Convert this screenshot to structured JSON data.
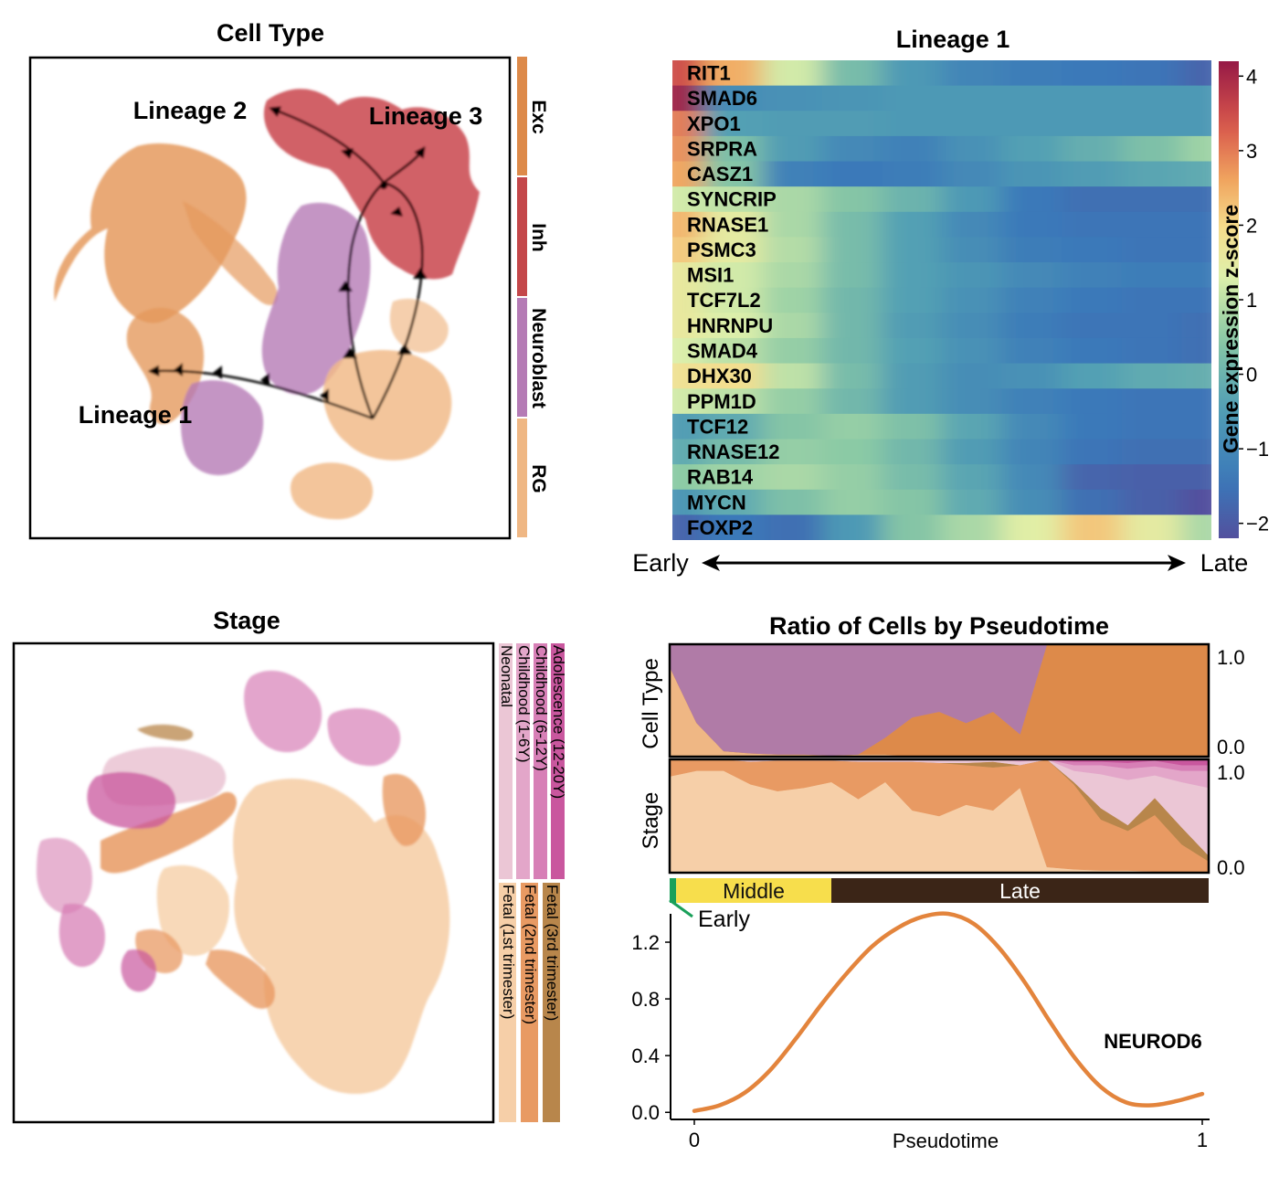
{
  "chart_data": [
    {
      "type": "scatter",
      "title": "Cell Type",
      "legend": {
        "placement": "right",
        "entries": [
          {
            "label": "Exc",
            "color": "#dd8a4a"
          },
          {
            "label": "Inh",
            "color": "#c4474a"
          },
          {
            "label": "Neuroblast",
            "color": "#b57bb5"
          },
          {
            "label": "RG",
            "color": "#efb784"
          }
        ]
      },
      "annotations": [
        "Lineage 1",
        "Lineage 2",
        "Lineage 3"
      ]
    },
    {
      "type": "heatmap",
      "title": "Lineage 1",
      "genes": [
        "RIT1",
        "SMAD6",
        "XPO1",
        "SRPRA",
        "CASZ1",
        "SYNCRIP",
        "RNASE1",
        "PSMC3",
        "MSI1",
        "TCF7L2",
        "HNRNPU",
        "SMAD4",
        "DHX30",
        "PPM1D",
        "TCF12",
        "RNASE12",
        "RAB14",
        "MYCN",
        "FOXP2"
      ],
      "x_axis": {
        "start_label": "Early",
        "end_label": "Late"
      },
      "colorbar": {
        "label": "Gene expression z-score",
        "ticks": [
          4,
          3,
          2,
          1,
          0,
          -1,
          -2
        ],
        "range": [
          -2.2,
          4.2
        ]
      },
      "rows": [
        [
          3.5,
          2.5,
          1.2,
          0.2,
          -0.6,
          -1.1,
          -1.3,
          -1.4,
          -1.5,
          -1.8
        ],
        [
          4.1,
          -0.9,
          -0.8,
          -0.7,
          -0.6,
          -0.6,
          -0.6,
          -0.6,
          -0.6,
          -0.6
        ],
        [
          3.0,
          -0.4,
          -0.5,
          -0.5,
          -0.6,
          -0.6,
          -0.6,
          -0.6,
          -0.6,
          -0.6
        ],
        [
          2.8,
          0.3,
          -0.5,
          -1.0,
          -1.2,
          -0.8,
          -0.4,
          -0.1,
          0.3,
          0.7
        ],
        [
          2.6,
          0.4,
          -1.2,
          -1.4,
          -1.3,
          -1.0,
          -0.7,
          -0.5,
          -0.3,
          -0.2
        ],
        [
          1.2,
          1.0,
          0.8,
          0.4,
          0.0,
          -0.6,
          -1.4,
          -1.6,
          -1.6,
          -1.6
        ],
        [
          2.4,
          1.5,
          0.8,
          0.2,
          -0.4,
          -1.0,
          -1.4,
          -1.5,
          -1.5,
          -1.5
        ],
        [
          2.2,
          1.5,
          0.9,
          0.2,
          -0.4,
          -0.9,
          -1.3,
          -1.4,
          -1.5,
          -1.5
        ],
        [
          1.6,
          1.2,
          0.8,
          0.2,
          -0.4,
          -0.7,
          -1.0,
          -1.2,
          -1.3,
          -1.3
        ],
        [
          1.6,
          1.2,
          0.7,
          0.1,
          -0.4,
          -0.8,
          -1.2,
          -1.4,
          -1.5,
          -1.5
        ],
        [
          1.6,
          1.3,
          0.8,
          0.1,
          -0.5,
          -0.9,
          -1.3,
          -1.5,
          -1.5,
          -1.6
        ],
        [
          1.3,
          1.0,
          0.6,
          0.1,
          -0.4,
          -0.8,
          -1.2,
          -1.4,
          -1.5,
          -1.6
        ],
        [
          1.8,
          1.9,
          1.0,
          0.2,
          -0.5,
          -0.9,
          -0.8,
          -0.4,
          -0.2,
          -0.1
        ],
        [
          1.2,
          1.0,
          0.6,
          0.1,
          -0.5,
          -0.9,
          -1.2,
          -1.4,
          -1.5,
          -1.5
        ],
        [
          -0.5,
          -0.2,
          0.4,
          0.6,
          0.3,
          -0.3,
          -1.0,
          -1.4,
          -1.5,
          -1.5
        ],
        [
          -0.2,
          0.2,
          0.6,
          0.5,
          0.1,
          -0.5,
          -1.1,
          -1.5,
          -1.6,
          -1.6
        ],
        [
          0.5,
          0.7,
          0.8,
          0.6,
          0.2,
          -0.3,
          -1.0,
          -1.8,
          -1.9,
          -1.9
        ],
        [
          -0.7,
          -0.2,
          0.3,
          0.6,
          0.4,
          -0.2,
          -0.9,
          -1.6,
          -1.9,
          -2.2
        ],
        [
          -1.8,
          -1.4,
          -1.6,
          -0.6,
          0.4,
          0.8,
          1.4,
          2.2,
          1.5,
          0.8
        ]
      ]
    },
    {
      "type": "scatter",
      "title": "Stage",
      "legend": {
        "placement": "right",
        "entries": [
          {
            "label": "Neonatal",
            "color": "#ebc6d5"
          },
          {
            "label": "Childhood (1-6Y)",
            "color": "#e3a6c9"
          },
          {
            "label": "Childhood (6-12Y)",
            "color": "#d77fb6"
          },
          {
            "label": "Adolescence (12-20Y)",
            "color": "#c9579e"
          },
          {
            "label": "Fetal (1st trimester)",
            "color": "#f6cfa8"
          },
          {
            "label": "Fetal (2nd trimester)",
            "color": "#e89a63"
          },
          {
            "label": "Fetal (3rd trimester)",
            "color": "#b8864b"
          }
        ]
      }
    },
    {
      "type": "area",
      "title": "Ratio of Cells by Pseudotime",
      "x": [
        0,
        0.05,
        0.1,
        0.15,
        0.2,
        0.25,
        0.3,
        0.35,
        0.4,
        0.45,
        0.5,
        0.55,
        0.6,
        0.65,
        0.7,
        0.75,
        0.8,
        0.85,
        0.9,
        0.95,
        1.0
      ],
      "panels": [
        {
          "ylabel": "Cell Type",
          "ylim": [
            0,
            1
          ],
          "yticks": [
            "1.0",
            "0.0"
          ],
          "series": [
            {
              "name": "RG",
              "color": "#efb784",
              "values": [
                0.8,
                0.3,
                0.05,
                0.03,
                0.02,
                0.02,
                0.01,
                0.02,
                0.02,
                0,
                0,
                0,
                0,
                0,
                0,
                0,
                0,
                0,
                0,
                0,
                0
              ]
            },
            {
              "name": "Exc",
              "color": "#dd8a4a",
              "values": [
                0,
                0,
                0,
                0,
                0,
                0,
                0,
                0,
                0.15,
                0.35,
                0.4,
                0.3,
                0.4,
                0.2,
                1.0,
                1.0,
                1.0,
                1.0,
                1.0,
                1.0,
                1.0
              ]
            },
            {
              "name": "Neuroblast",
              "color": "#b07ba7",
              "values": [
                0.2,
                0.7,
                0.95,
                0.97,
                0.98,
                0.98,
                0.99,
                0.98,
                0.83,
                0.65,
                0.6,
                0.7,
                0.6,
                0.8,
                0,
                0,
                0,
                0,
                0,
                0,
                0
              ]
            }
          ]
        },
        {
          "ylabel": "Stage",
          "ylim": [
            0,
            1
          ],
          "yticks": [
            "1.0",
            "0.0"
          ],
          "series": [
            {
              "name": "Fetal (1st trimester)",
              "color": "#f6cfa8",
              "values": [
                0.85,
                0.9,
                0.9,
                0.78,
                0.72,
                0.75,
                0.8,
                0.65,
                0.8,
                0.55,
                0.5,
                0.6,
                0.55,
                0.75,
                0.05,
                0.03,
                0.02,
                0.02,
                0.01,
                0,
                0
              ]
            },
            {
              "name": "Fetal (2nd trimester)",
              "color": "#e89a63",
              "values": [
                0.15,
                0.1,
                0.1,
                0.2,
                0.27,
                0.24,
                0.19,
                0.33,
                0.18,
                0.43,
                0.47,
                0.35,
                0.38,
                0.2,
                0.95,
                0.75,
                0.45,
                0.35,
                0.5,
                0.25,
                0.1
              ]
            },
            {
              "name": "Fetal (3rd trimester)",
              "color": "#b8864b",
              "values": [
                0,
                0,
                0,
                0,
                0,
                0,
                0,
                0,
                0,
                0,
                0,
                0.02,
                0.05,
                0,
                0,
                0.02,
                0.1,
                0.05,
                0.15,
                0.15,
                0.05
              ]
            },
            {
              "name": "Neonatal",
              "color": "#ebc6d5",
              "values": [
                0,
                0,
                0,
                0.02,
                0.01,
                0.01,
                0.01,
                0.02,
                0.02,
                0.02,
                0.03,
                0.03,
                0.02,
                0.03,
                0,
                0.1,
                0.3,
                0.4,
                0.2,
                0.4,
                0.6
              ]
            },
            {
              "name": "Childhood (1-6Y)",
              "color": "#e3a6c9",
              "values": [
                0,
                0,
                0,
                0,
                0,
                0,
                0,
                0,
                0,
                0,
                0,
                0,
                0,
                0.02,
                0,
                0.05,
                0.08,
                0.1,
                0.08,
                0.1,
                0.15
              ]
            },
            {
              "name": "Childhood (6-12Y)",
              "color": "#d77fb6",
              "values": [
                0,
                0,
                0,
                0,
                0,
                0,
                0,
                0,
                0,
                0,
                0,
                0,
                0,
                0,
                0,
                0.03,
                0.03,
                0.05,
                0.05,
                0.05,
                0.05
              ]
            },
            {
              "name": "Adolescence (12-20Y)",
              "color": "#c9579e",
              "values": [
                0,
                0,
                0,
                0,
                0,
                0,
                0,
                0,
                0,
                0,
                0,
                0,
                0,
                0,
                0,
                0.02,
                0.02,
                0.03,
                0.02,
                0.05,
                0.05
              ]
            }
          ]
        }
      ],
      "stage_bar": [
        {
          "label": "Early",
          "color": "#1aa05a",
          "range": [
            0,
            0.012
          ]
        },
        {
          "label": "Middle",
          "color": "#f7de4c",
          "range": [
            0.012,
            0.3
          ]
        },
        {
          "label": "Late",
          "color": "#3b2517",
          "range": [
            0.3,
            1.0
          ]
        }
      ]
    },
    {
      "type": "line",
      "xlabel": "Pseudotime",
      "xlim": [
        0,
        1
      ],
      "ylim": [
        -0.05,
        1.4
      ],
      "xticks": [
        "0",
        "1"
      ],
      "yticks": [
        "0.0",
        "0.4",
        "0.8",
        "1.2"
      ],
      "series": [
        {
          "name": "NEUROD6",
          "color": "#e3843c",
          "x": [
            0,
            0.05,
            0.1,
            0.15,
            0.2,
            0.25,
            0.3,
            0.35,
            0.4,
            0.45,
            0.5,
            0.55,
            0.6,
            0.65,
            0.7,
            0.75,
            0.8,
            0.85,
            0.9,
            0.95,
            1.0
          ],
          "y": [
            0.01,
            0.05,
            0.14,
            0.3,
            0.52,
            0.76,
            0.98,
            1.17,
            1.3,
            1.38,
            1.4,
            1.33,
            1.16,
            0.92,
            0.64,
            0.38,
            0.18,
            0.07,
            0.05,
            0.08,
            0.13
          ]
        }
      ]
    }
  ]
}
